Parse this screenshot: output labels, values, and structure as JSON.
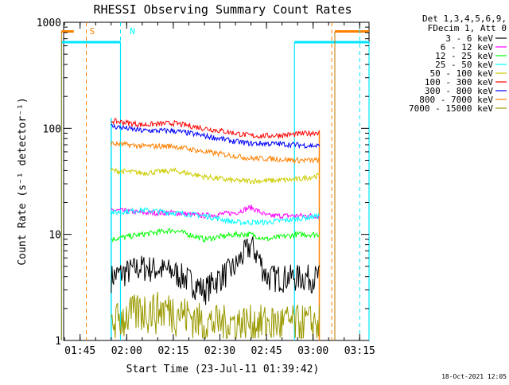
{
  "chart_data": {
    "type": "line",
    "title": "RHESSI Observing Summary Count Rates",
    "xlabel": "Start Time (23-Jul-11 01:39:42)",
    "ylabel": "Count Rate (s⁻¹ detector⁻¹)",
    "y_scale": "log",
    "ylim": [
      1,
      1000
    ],
    "xlim": [
      "01:39:42",
      "03:18:00"
    ],
    "x_ticks": [
      "01:45",
      "02:00",
      "02:15",
      "02:30",
      "02:45",
      "03:00",
      "03:15"
    ],
    "y_ticks": [
      "1",
      "10",
      "100",
      "1000"
    ],
    "grid": false,
    "legend_position": "right",
    "legend_header": [
      "Det 1,3,4,5,6,9,",
      "FDecim 1, Att 0"
    ],
    "footer_timestamp": "18-Oct-2021 12:05",
    "annotations": [
      {
        "text": "S",
        "x": "01:47",
        "color": "#ff8000"
      },
      {
        "text": "N",
        "x": "02:00",
        "color": "#00ffff"
      }
    ],
    "markers": {
      "saa_dashed_lines": [
        "01:47",
        "03:06"
      ],
      "night_dashed_lines": [
        "01:58",
        "03:15"
      ],
      "night_intervals": [
        [
          "01:39",
          "01:58"
        ],
        [
          "02:54",
          "03:18"
        ]
      ],
      "saa_intervals": [
        [
          "01:39",
          "01:43"
        ],
        [
          "03:07",
          "03:18"
        ]
      ],
      "data_interval": [
        "01:55",
        "03:02"
      ]
    },
    "series": [
      {
        "name": "3 - 6 keV",
        "color": "#000000",
        "x": [
          "01:55",
          "02:05",
          "02:15",
          "02:25",
          "02:35",
          "02:40",
          "02:45",
          "02:55",
          "03:02"
        ],
        "values": [
          4,
          5,
          4.5,
          3,
          5,
          8,
          4,
          4,
          4
        ]
      },
      {
        "name": "6 - 12 keV",
        "color": "#ff00ff",
        "x": [
          "01:55",
          "02:05",
          "02:15",
          "02:25",
          "02:35",
          "02:40",
          "02:45",
          "02:55",
          "03:02"
        ],
        "values": [
          17,
          16,
          16,
          15,
          16,
          18,
          15,
          15,
          15
        ]
      },
      {
        "name": "12 - 25 keV",
        "color": "#00ff00",
        "x": [
          "01:55",
          "02:05",
          "02:15",
          "02:25",
          "02:35",
          "02:40",
          "02:45",
          "02:55",
          "03:02"
        ],
        "values": [
          9,
          10,
          11,
          9,
          10,
          10,
          9,
          10,
          10
        ]
      },
      {
        "name": "25 - 50 keV",
        "color": "#00ffff",
        "x": [
          "01:55",
          "02:05",
          "02:15",
          "02:25",
          "02:35",
          "02:40",
          "02:45",
          "02:55",
          "03:02"
        ],
        "values": [
          16,
          17,
          16,
          15,
          13,
          13,
          13,
          14,
          15
        ]
      },
      {
        "name": "50 - 100 keV",
        "color": "#cccc00",
        "x": [
          "01:55",
          "02:05",
          "02:15",
          "02:25",
          "02:35",
          "02:40",
          "02:45",
          "02:55",
          "03:02"
        ],
        "values": [
          40,
          38,
          40,
          35,
          32,
          32,
          32,
          33,
          36
        ]
      },
      {
        "name": "100 - 300 keV",
        "color": "#ff0000",
        "x": [
          "01:55",
          "02:05",
          "02:15",
          "02:25",
          "02:35",
          "02:40",
          "02:45",
          "02:55",
          "03:02"
        ],
        "values": [
          118,
          108,
          112,
          100,
          90,
          85,
          85,
          88,
          92
        ]
      },
      {
        "name": "300 - 800 keV",
        "color": "#0000ff",
        "x": [
          "01:55",
          "02:05",
          "02:15",
          "02:25",
          "02:35",
          "02:40",
          "02:45",
          "02:55",
          "03:02"
        ],
        "values": [
          105,
          95,
          95,
          85,
          75,
          72,
          72,
          70,
          68
        ]
      },
      {
        "name": "800 - 7000 keV",
        "color": "#ff8000",
        "x": [
          "01:55",
          "02:05",
          "02:15",
          "02:25",
          "02:35",
          "02:40",
          "02:45",
          "02:55",
          "03:02"
        ],
        "values": [
          72,
          68,
          68,
          60,
          55,
          52,
          52,
          50,
          50
        ]
      },
      {
        "name": "7000 - 15000 keV",
        "color": "#999900",
        "x": [
          "01:55",
          "02:05",
          "02:15",
          "02:25",
          "02:35",
          "02:40",
          "02:45",
          "02:55",
          "03:02"
        ],
        "values": [
          1.5,
          2,
          2,
          1.5,
          1.5,
          1.5,
          1.5,
          1.5,
          1.5
        ]
      }
    ]
  }
}
